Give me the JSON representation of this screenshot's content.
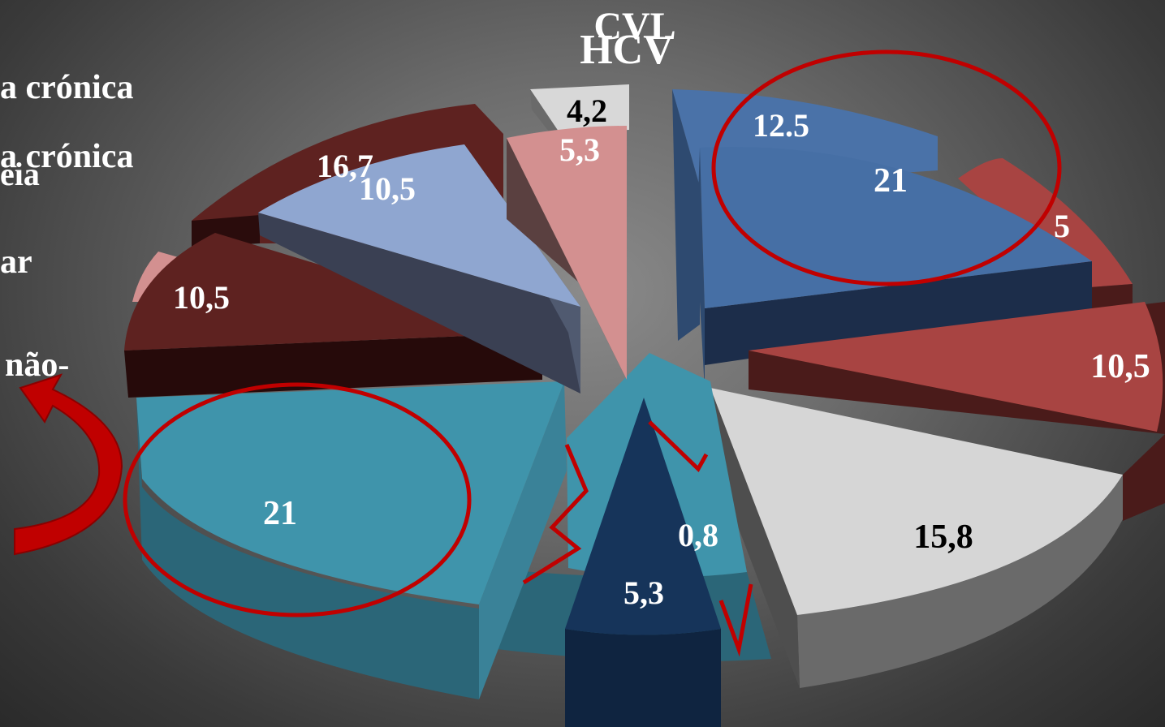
{
  "titles": {
    "back": "CVL",
    "front": "HCV"
  },
  "legend_fragments": [
    "a crónica",
    "a crónica",
    "eia",
    "ar",
    "não-"
  ],
  "colors": {
    "accent_ellipse": "#c00000",
    "accent_arrow": "#c00000"
  },
  "chart_data": [
    {
      "type": "pie",
      "title": "CVL",
      "style": "3d-exploded",
      "slices": [
        {
          "label": "12.5",
          "value": 12.5,
          "color": "#4a72a8"
        },
        {
          "label": "5",
          "value": 5,
          "color": "#a84442"
        },
        {
          "label": "16,7",
          "value": 16.7,
          "color": "#5e2220"
        },
        {
          "label": "4,2",
          "value": 4.2,
          "color": "#d8d8d8"
        }
      ]
    },
    {
      "type": "pie",
      "title": "HCV",
      "style": "3d-exploded",
      "slices": [
        {
          "label": "21",
          "value": 21,
          "color": "#466fa5"
        },
        {
          "label": "10,5",
          "value": 10.5,
          "color": "#a84442"
        },
        {
          "label": "15,8",
          "value": 15.8,
          "color": "#d6d6d6"
        },
        {
          "label": "0,8",
          "value": 0.8,
          "color": "#3f94ab"
        },
        {
          "label": "5,3",
          "value": 5.3,
          "color": "#16345a"
        },
        {
          "label": "21",
          "value": 21,
          "color": "#3f94ab"
        },
        {
          "label": "10,5",
          "value": 10.5,
          "color": "#5e2220"
        },
        {
          "label": "10,5",
          "value": 10.5,
          "color": "#8fa6d0"
        },
        {
          "label": "5,3",
          "value": 5.3,
          "color": "#d39090"
        }
      ]
    }
  ]
}
